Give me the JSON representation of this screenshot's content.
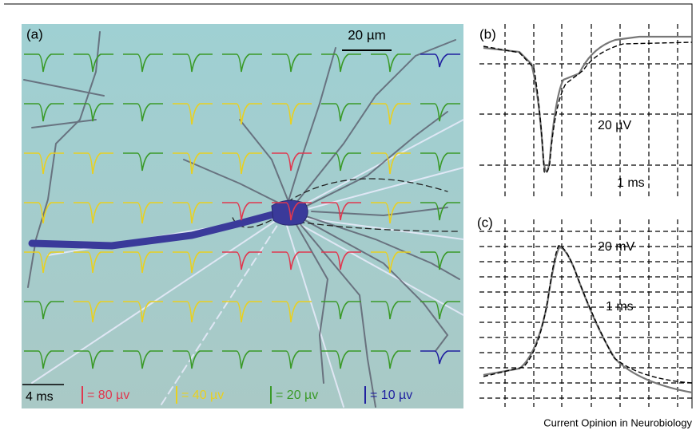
{
  "panel_a": {
    "label": "(a)",
    "scale_length": "20 µm",
    "scale_time": "4 ms",
    "legend": [
      "= 80 µv",
      "= 40 µv",
      "= 20 µv",
      "= 10 µv"
    ]
  },
  "panel_b": {
    "label": "(b)",
    "amplitude": "20 µV",
    "time": "1 ms"
  },
  "panel_c": {
    "label": "(c)",
    "amplitude": "20 mV",
    "time": "1 ms"
  },
  "credit": "Current Opinion in Neurobiology"
}
